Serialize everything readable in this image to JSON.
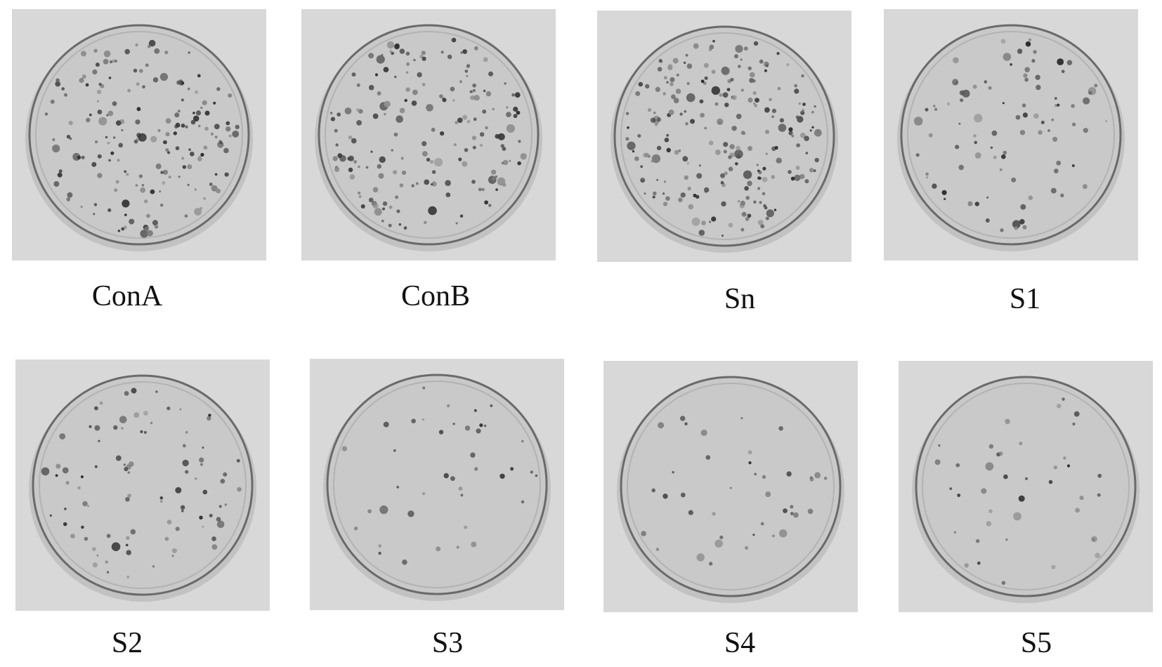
{
  "figure": {
    "plates": [
      {
        "label": "ConA",
        "density": "high"
      },
      {
        "label": "ConB",
        "density": "high"
      },
      {
        "label": "Sn",
        "density": "very-high"
      },
      {
        "label": "S1",
        "density": "medium"
      },
      {
        "label": "S2",
        "density": "medium"
      },
      {
        "label": "S3",
        "density": "low"
      },
      {
        "label": "S4",
        "density": "low"
      },
      {
        "label": "S5",
        "density": "low"
      }
    ],
    "colors": {
      "plate_background": "#d8d8d8",
      "agar": "#c9c9c9",
      "colony": "#2a2a2a"
    }
  }
}
